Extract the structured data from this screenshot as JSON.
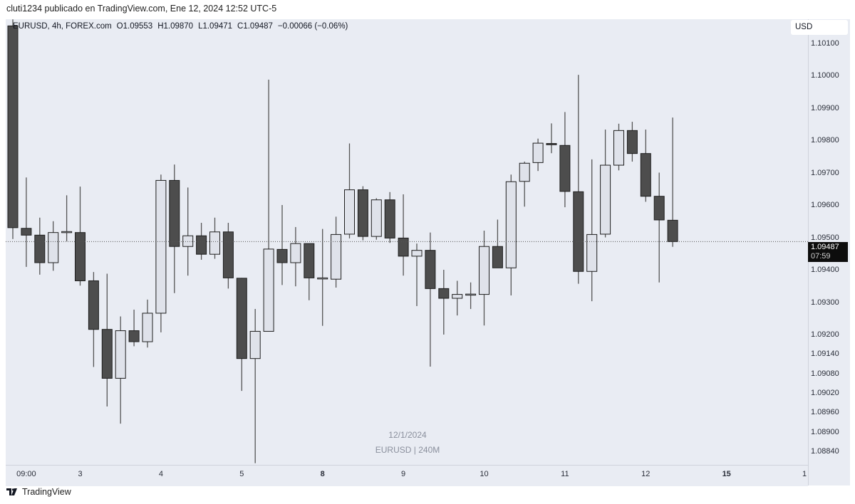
{
  "publisher_line": "cluti1234 publicado en TradingView.com, Ene 12, 2024 12:52 UTC-5",
  "legend": {
    "symbol": "EURUSD, 4h, FOREX.com",
    "open": "O1.09553",
    "high": "H1.09870",
    "low": "L1.09471",
    "close": "C1.09487",
    "change": "−0.00066 (−0.06%)"
  },
  "currency_button": "USD",
  "current_price": {
    "value": "1.09487",
    "countdown": "07:59"
  },
  "watermark": {
    "date": "12/1/2024",
    "symbol": "EURUSD | 240M"
  },
  "branding": {
    "logo_text": "TradingView"
  },
  "colors": {
    "bear_fill": "#4d4d4d",
    "bull_fill": "#dfe2ea",
    "border": "#1e1e1e",
    "wick": "#555555",
    "background": "#e9ecf3"
  },
  "chart_data": {
    "type": "candlestick",
    "symbol": "EURUSD",
    "interval": "4h",
    "grid": false,
    "price_ticks": [
      "1.10100",
      "1.10000",
      "1.09900",
      "1.09800",
      "1.09700",
      "1.09600",
      "1.09500",
      "1.09400",
      "1.09300",
      "1.09200",
      "1.09140",
      "1.09080",
      "1.09020",
      "1.08960",
      "1.08900",
      "1.08840"
    ],
    "time_labels": [
      {
        "label": "09:00",
        "bold": false
      },
      {
        "label": "3",
        "bold": false
      },
      {
        "label": "4",
        "bold": false
      },
      {
        "label": "5",
        "bold": false
      },
      {
        "label": "8",
        "bold": true
      },
      {
        "label": "9",
        "bold": false
      },
      {
        "label": "10",
        "bold": false
      },
      {
        "label": "11",
        "bold": false
      },
      {
        "label": "12",
        "bold": false
      },
      {
        "label": "15",
        "bold": true
      },
      {
        "label": "1",
        "bold": false
      }
    ],
    "ohlc_columns": [
      "open",
      "high",
      "low",
      "close"
    ],
    "candles": [
      [
        1.10153,
        1.10173,
        1.09495,
        1.0953
      ],
      [
        1.09528,
        1.09685,
        1.09409,
        1.09507
      ],
      [
        1.09507,
        1.09561,
        1.09385,
        1.09422
      ],
      [
        1.09422,
        1.0955,
        1.09397,
        1.09515
      ],
      [
        1.09515,
        1.0963,
        1.09488,
        1.09518
      ],
      [
        1.09515,
        1.09657,
        1.09351,
        1.09366
      ],
      [
        1.09366,
        1.09393,
        1.091,
        1.09216
      ],
      [
        1.09216,
        1.09388,
        1.08978,
        1.09065
      ],
      [
        1.09065,
        1.09256,
        1.08925,
        1.09212
      ],
      [
        1.09212,
        1.09277,
        1.09164,
        1.09178
      ],
      [
        1.09178,
        1.09308,
        1.0916,
        1.09266
      ],
      [
        1.09266,
        1.09694,
        1.09207,
        1.09676
      ],
      [
        1.09676,
        1.09725,
        1.09328,
        1.09472
      ],
      [
        1.09472,
        1.09654,
        1.09382,
        1.09505
      ],
      [
        1.09505,
        1.09545,
        1.09431,
        1.09448
      ],
      [
        1.09448,
        1.09561,
        1.09434,
        1.09517
      ],
      [
        1.09517,
        1.09545,
        1.09342,
        1.09375
      ],
      [
        1.09374,
        1.09375,
        1.09026,
        1.09126
      ],
      [
        1.09126,
        1.09279,
        1.08803,
        1.0921
      ],
      [
        1.0921,
        1.09987,
        1.0921,
        1.09464
      ],
      [
        1.09463,
        1.096,
        1.09353,
        1.09422
      ],
      [
        1.09422,
        1.09532,
        1.09349,
        1.09481
      ],
      [
        1.09481,
        1.09481,
        1.09306,
        1.09375
      ],
      [
        1.09374,
        1.09526,
        1.09227,
        1.09375
      ],
      [
        1.09371,
        1.09564,
        1.09345,
        1.09509
      ],
      [
        1.0951,
        1.0979,
        1.09497,
        1.09647
      ],
      [
        1.09647,
        1.09658,
        1.09491,
        1.09503
      ],
      [
        1.09503,
        1.09621,
        1.09493,
        1.09616
      ],
      [
        1.09616,
        1.0964,
        1.09483,
        1.09498
      ],
      [
        1.09498,
        1.09633,
        1.09382,
        1.09442
      ],
      [
        1.09442,
        1.09481,
        1.09288,
        1.0946
      ],
      [
        1.0946,
        1.09515,
        1.09101,
        1.09342
      ],
      [
        1.09342,
        1.094,
        1.092,
        1.09312
      ],
      [
        1.09312,
        1.09366,
        1.09259,
        1.09324
      ],
      [
        1.09324,
        1.09361,
        1.09279,
        1.09325
      ],
      [
        1.09324,
        1.09521,
        1.09228,
        1.09472
      ],
      [
        1.09472,
        1.09555,
        1.09406,
        1.09406
      ],
      [
        1.09406,
        1.09694,
        1.09321,
        1.09672
      ],
      [
        1.09673,
        1.09734,
        1.09595,
        1.09729
      ],
      [
        1.09731,
        1.09805,
        1.09705,
        1.09791
      ],
      [
        1.0979,
        1.09852,
        1.0976,
        1.09786
      ],
      [
        1.09784,
        1.09887,
        1.09593,
        1.09642
      ],
      [
        1.09641,
        1.10002,
        1.09357,
        1.09395
      ],
      [
        1.09395,
        1.09741,
        1.09303,
        1.09509
      ],
      [
        1.0951,
        1.09833,
        1.095,
        1.09723
      ],
      [
        1.09723,
        1.09851,
        1.09707,
        1.0983
      ],
      [
        1.0983,
        1.09857,
        1.09734,
        1.09759
      ],
      [
        1.09759,
        1.09833,
        1.0961,
        1.09627
      ],
      [
        1.09627,
        1.097,
        1.09361,
        1.09554
      ],
      [
        1.09553,
        1.0987,
        1.09471,
        1.09487
      ]
    ]
  }
}
